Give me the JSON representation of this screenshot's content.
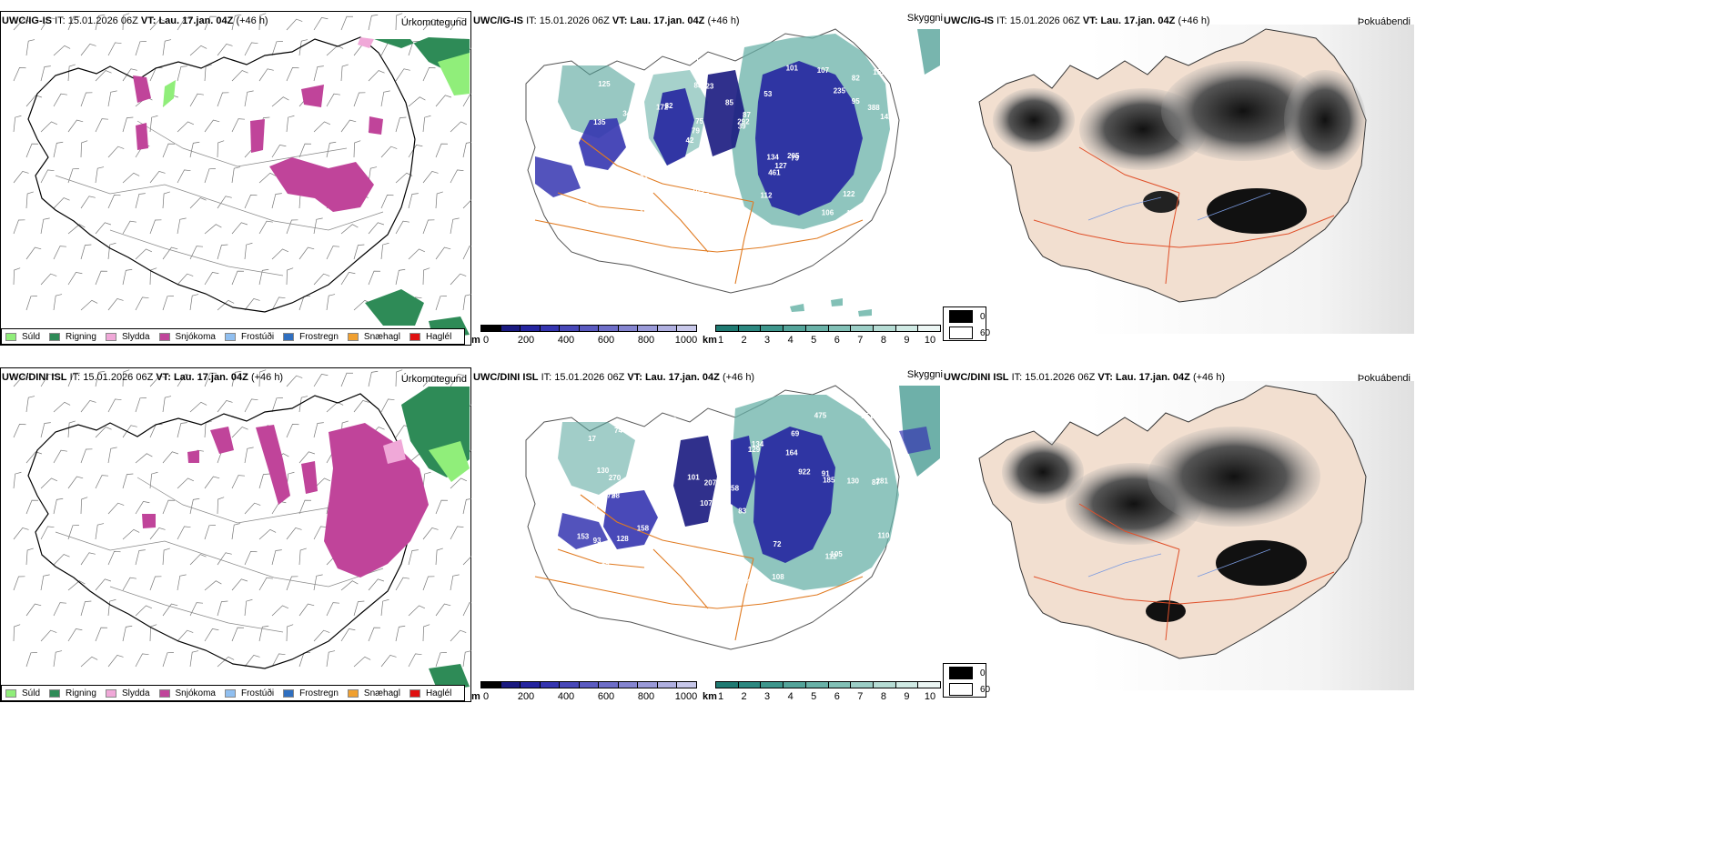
{
  "rows": [
    {
      "id": "top",
      "header": {
        "model": "UWC/IG-IS",
        "it_label": "IT:",
        "it_value": "15.01.2026 06Z",
        "vt_label": "VT:",
        "vt_value": "Lau. 17.jan. 04Z",
        "offset": "(+46 h)"
      }
    },
    {
      "id": "bottom",
      "header": {
        "model": "UWC/DINI ISL",
        "it_label": "IT:",
        "it_value": "15.01.2026 06Z",
        "vt_label": "VT:",
        "vt_value": "Lau. 17.jan. 04Z",
        "offset": "(+46 h)"
      }
    }
  ],
  "panel_titles": {
    "precip": "Úrkomutegund",
    "visibility": "Skyggni",
    "fog": "Þokuábendi"
  },
  "precip_legend": [
    {
      "label": "Súld",
      "color": "#90ee7a"
    },
    {
      "label": "Rigning",
      "color": "#2e8b57"
    },
    {
      "label": "Slydda",
      "color": "#f0a8d8"
    },
    {
      "label": "Snjókoma",
      "color": "#c0449a"
    },
    {
      "label": "Frostúði",
      "color": "#90bff0"
    },
    {
      "label": "Frostregn",
      "color": "#2f6fc0"
    },
    {
      "label": "Snæhagl",
      "color": "#f0a030"
    },
    {
      "label": "Haglél",
      "color": "#e01010"
    }
  ],
  "cloudbase_bar": {
    "unit": "m",
    "ticks": [
      "0",
      "200",
      "400",
      "600",
      "800",
      "1000"
    ],
    "colors": [
      "#000000",
      "#1a1a80",
      "#2525a0",
      "#3535b0",
      "#4848b8",
      "#5a5ac0",
      "#6e6ec8",
      "#8585d0",
      "#9a9ad8",
      "#b0b0e0",
      "#c8c8ea"
    ]
  },
  "visibility_bar": {
    "unit": "km",
    "ticks": [
      "1",
      "2",
      "3",
      "4",
      "5",
      "6",
      "7",
      "8",
      "9",
      "10"
    ],
    "colors": [
      "#1f7a72",
      "#2c8880",
      "#3e968c",
      "#54a49a",
      "#6ab2a8",
      "#82c0b6",
      "#9ccec6",
      "#b6dcd4",
      "#d0eae4",
      "#ecf6f4"
    ]
  },
  "fog_legend": [
    {
      "value": "0",
      "color": "#000000"
    },
    {
      "value": "60",
      "color": "#ffffff"
    }
  ],
  "cloudbase_labels": {
    "top": [
      "105",
      "135",
      "82",
      "42",
      "53",
      "123",
      "88",
      "85",
      "109",
      "82",
      "93",
      "127",
      "123",
      "87",
      "79",
      "125",
      "121",
      "142",
      "134",
      "95",
      "79",
      "105",
      "75",
      "70",
      "101",
      "93",
      "106",
      "122",
      "205",
      "222",
      "172",
      "347",
      "461",
      "316",
      "388",
      "292",
      "195",
      "175",
      "39",
      "118",
      "235",
      "151",
      "127",
      "112",
      "106",
      "101",
      "37",
      "174",
      "107"
    ],
    "bottom": [
      "123",
      "69",
      "87",
      "107",
      "83",
      "98",
      "17",
      "164",
      "86",
      "129",
      "158",
      "98",
      "140",
      "150",
      "149",
      "176",
      "226",
      "475",
      "922",
      "158",
      "270",
      "172",
      "281",
      "130",
      "153",
      "130",
      "207",
      "185",
      "105",
      "93",
      "112",
      "134",
      "128",
      "101",
      "72",
      "110",
      "91",
      "327",
      "351",
      "161",
      "87",
      "111",
      "108",
      "74"
    ]
  }
}
